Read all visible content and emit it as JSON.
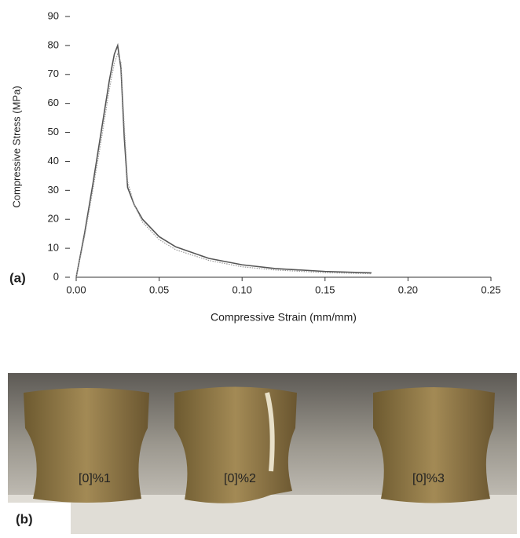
{
  "chart_data": {
    "type": "line",
    "xlabel": "Compressive Strain (mm/mm)",
    "ylabel": "Compressive Stress (MPa)",
    "x": [
      0,
      0.005,
      0.01,
      0.015,
      0.02,
      0.023,
      0.025,
      0.027,
      0.029,
      0.031,
      0.035,
      0.04,
      0.05,
      0.06,
      0.08,
      0.1,
      0.12,
      0.15,
      0.178
    ],
    "series": [
      {
        "color": "#555555",
        "style": "solid",
        "values": [
          0,
          15,
          32,
          50,
          68,
          77,
          80,
          72,
          48,
          31,
          25,
          20,
          14,
          10.5,
          6.5,
          4.3,
          3,
          2,
          1.5
        ]
      },
      {
        "color": "#999999",
        "style": "dotted",
        "values": [
          0,
          14,
          30,
          47,
          65,
          74,
          77,
          74,
          52,
          33,
          25,
          19,
          13,
          9.5,
          5.8,
          3.6,
          2.5,
          1.6,
          1.2
        ]
      }
    ],
    "xlim": [
      0,
      0.25
    ],
    "xticks": [
      {
        "value": 0,
        "label": "0.00"
      },
      {
        "value": 0.05,
        "label": "0.05"
      },
      {
        "value": 0.1,
        "label": "0.10"
      },
      {
        "value": 0.15,
        "label": "0.15"
      },
      {
        "value": 0.2,
        "label": "0.20"
      },
      {
        "value": 0.25,
        "label": "0.25"
      }
    ],
    "ylim": [
      0,
      90
    ],
    "yticks": [
      0,
      10,
      20,
      30,
      40,
      50,
      60,
      70,
      80,
      90
    ],
    "grid": false
  },
  "panels": [
    "(a)",
    "(b)"
  ],
  "photo": {
    "labels": [
      "[0]%1",
      "[0]%2",
      "[0]%3"
    ]
  }
}
